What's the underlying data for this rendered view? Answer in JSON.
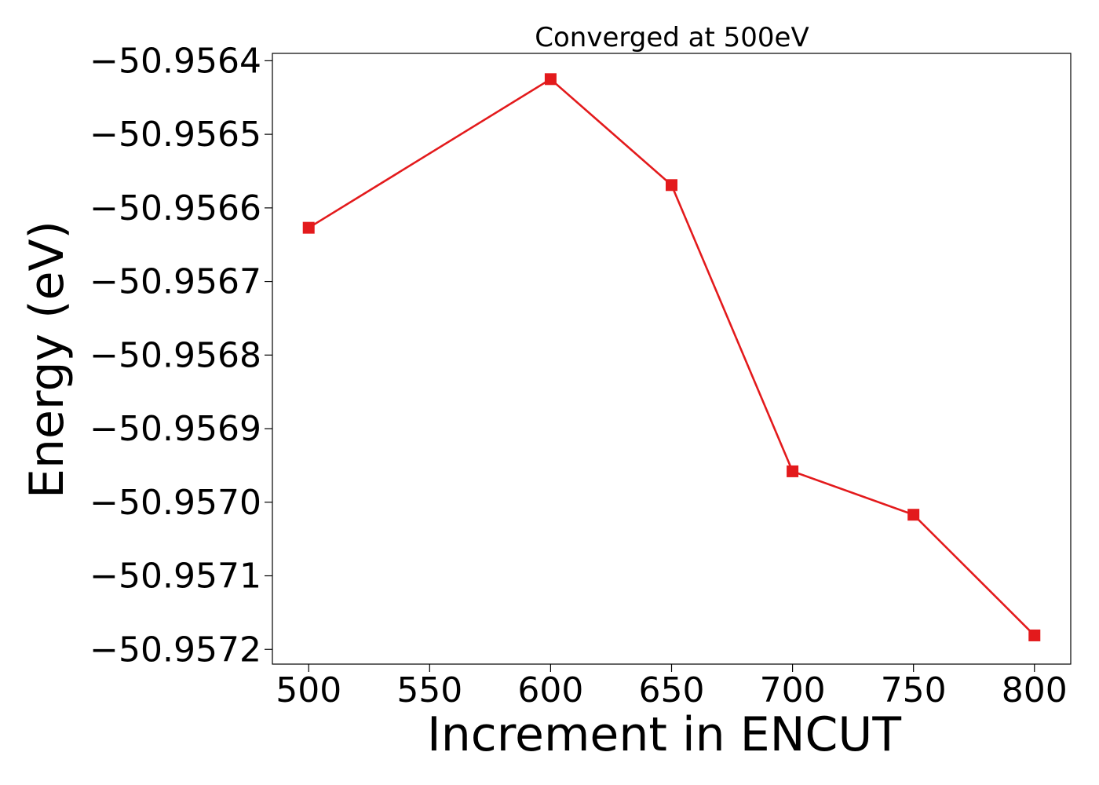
{
  "chart_data": {
    "type": "line",
    "title": "Converged at 500eV",
    "xlabel": "Increment in ENCUT",
    "ylabel": "Energy (eV)",
    "x": [
      500,
      600,
      650,
      700,
      750,
      800
    ],
    "series": [
      {
        "values": [
          -50.956627,
          -50.956425,
          -50.956569,
          -50.956958,
          -50.957017,
          -50.957181
        ],
        "color": "#e31a1c",
        "marker": "square"
      }
    ],
    "xticks": [
      500,
      550,
      600,
      650,
      700,
      750,
      800
    ],
    "xtick_labels": [
      "500",
      "550",
      "600",
      "650",
      "700",
      "750",
      "800"
    ],
    "yticks": [
      -50.9564,
      -50.9565,
      -50.9566,
      -50.9567,
      -50.9568,
      -50.9569,
      -50.957,
      -50.9571,
      -50.9572
    ],
    "ytick_labels": [
      "−50.9564",
      "−50.9565",
      "−50.9566",
      "−50.9567",
      "−50.9568",
      "−50.9569",
      "−50.9570",
      "−50.9571",
      "−50.9572"
    ],
    "xlim": [
      485,
      815
    ],
    "ylim": [
      -50.95722,
      -50.95639
    ],
    "grid": false,
    "legend": false
  }
}
